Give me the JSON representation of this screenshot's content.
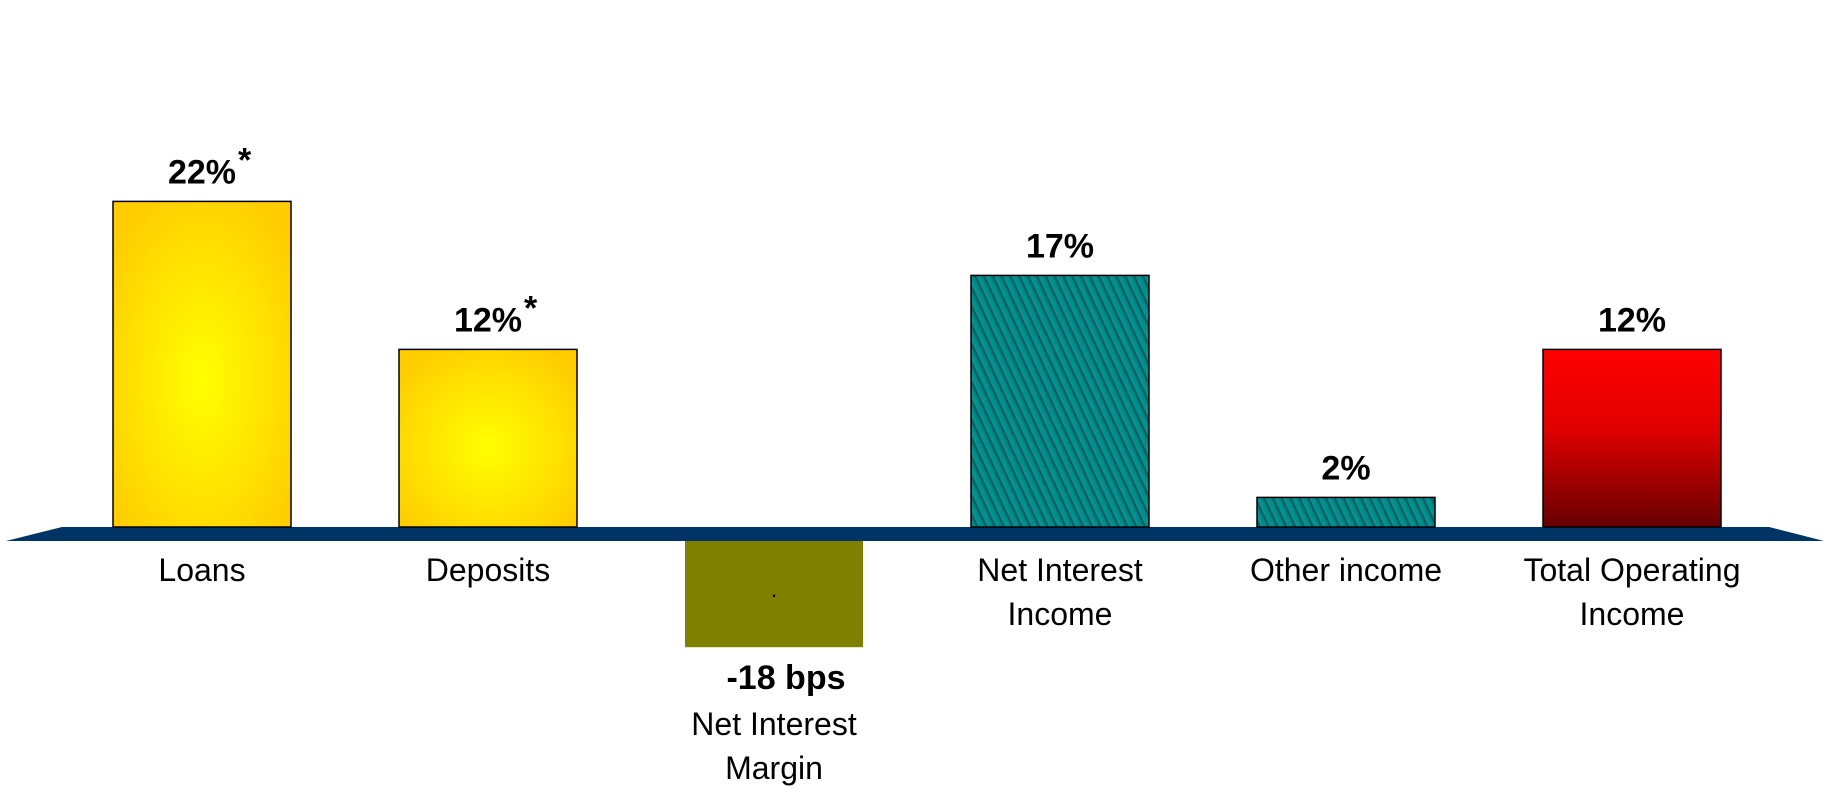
{
  "chart_data": {
    "type": "bar",
    "categories": [
      "Loans",
      "Deposits",
      "Net Interest Margin",
      "Net Interest Income",
      "Other income",
      "Total Operating Income"
    ],
    "category_lines": [
      [
        "Loans"
      ],
      [
        "Deposits"
      ],
      [
        "Net Interest",
        "Margin"
      ],
      [
        "Net Interest",
        "Income"
      ],
      [
        "Other income"
      ],
      [
        "Total Operating",
        "Income"
      ]
    ],
    "values": [
      22,
      12,
      -18,
      17,
      2,
      12
    ],
    "value_labels": [
      "22%",
      "12%",
      "-18 bps",
      "17%",
      "2%",
      "12%"
    ],
    "footnote_marks": [
      "*",
      "*",
      "",
      "",
      "",
      ""
    ],
    "negative_bar_inner_mark": ".",
    "bar_styles": [
      "gold-gradient",
      "gold-gradient",
      "olive-solid",
      "teal-hatched",
      "teal-hatched",
      "red-gradient"
    ],
    "colors": {
      "gold_edge": "#FFCC00",
      "gold_center": "#FFFF00",
      "olive": "#808000",
      "teal": "#009999",
      "teal_dark": "#0d5050",
      "red_top": "#FF0000",
      "red_bottom": "#660000",
      "baseline": "#003366"
    },
    "title": "",
    "xlabel": "",
    "ylabel": "",
    "ylim": [
      -18,
      22
    ],
    "grid": false,
    "legend": "none"
  }
}
